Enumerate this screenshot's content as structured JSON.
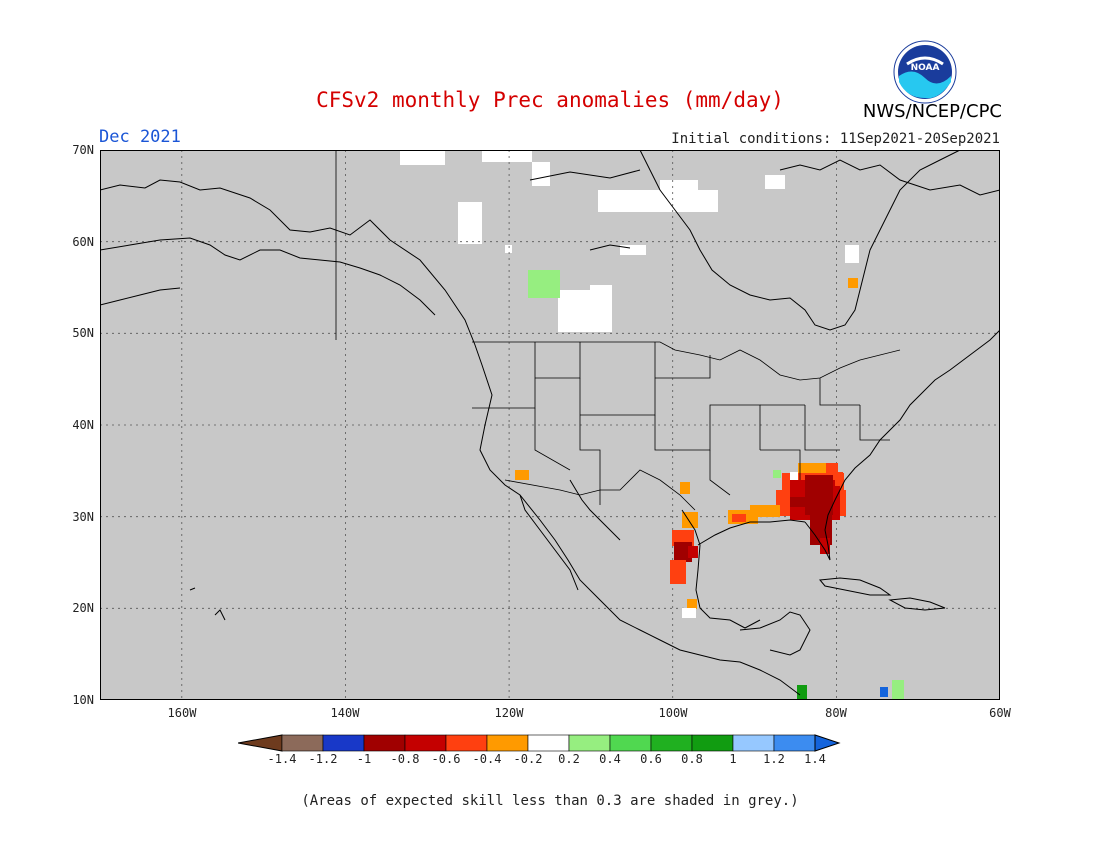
{
  "header": {
    "title": "CFSv2 monthly Prec anomalies (mm/day)",
    "month": "Dec 2021",
    "initial_conditions": "Initial conditions: 11Sep2021-20Sep2021",
    "agency": "NWS/NCEP/CPC",
    "logo_text": "NOAA"
  },
  "axes": {
    "lat_labels": [
      "70N",
      "60N",
      "50N",
      "40N",
      "30N",
      "20N",
      "10N"
    ],
    "lon_labels": [
      "160W",
      "140W",
      "120W",
      "100W",
      "80W",
      "60W"
    ]
  },
  "legend": {
    "labels": [
      "-1.4",
      "-1.2",
      "-1",
      "-0.8",
      "-0.6",
      "-0.4",
      "-0.2",
      "0.2",
      "0.4",
      "0.6",
      "0.8",
      "1",
      "1.2",
      "1.4"
    ],
    "colors": [
      "#6e3b1e",
      "#8c6a5a",
      "#1838c8",
      "#a00000",
      "#c40000",
      "#ff4010",
      "#ff9a00",
      "#ffffff",
      "#96ee80",
      "#50d850",
      "#20b020",
      "#119c11",
      "#96c8ff",
      "#3c8cf0",
      "#1464dc"
    ]
  },
  "footer": {
    "note": "(Areas of expected skill less than 0.3 are shaded in grey.)"
  },
  "map_style": {
    "skill_mask_color": "#c8c8c8",
    "coast_color": "#000000",
    "grid_style": "dotted"
  }
}
